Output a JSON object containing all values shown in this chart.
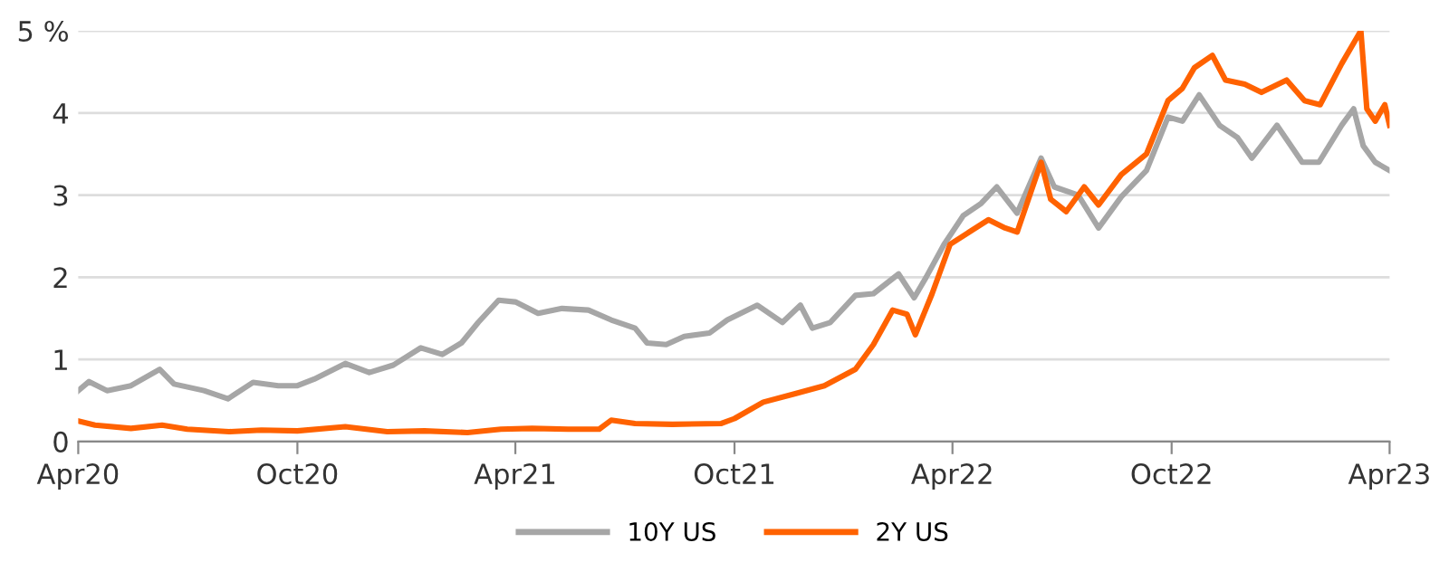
{
  "chart_data": {
    "type": "line",
    "xlim": [
      "2020-04-01",
      "2023-04-01"
    ],
    "xticks": [
      {
        "value": "2020-04-01",
        "label": "Apr20"
      },
      {
        "value": "2020-10-01",
        "label": "Oct20"
      },
      {
        "value": "2021-04-01",
        "label": "Apr21"
      },
      {
        "value": "2021-10-01",
        "label": "Oct21"
      },
      {
        "value": "2022-04-01",
        "label": "Apr22"
      },
      {
        "value": "2022-10-01",
        "label": "Oct22"
      },
      {
        "value": "2023-04-01",
        "label": "Apr23"
      }
    ],
    "ylim": [
      0,
      5
    ],
    "yticks": [
      0,
      1,
      2,
      3,
      4,
      {
        "value": 5,
        "label": "5 %"
      }
    ],
    "grid": "y",
    "legend": "bottom",
    "marker": "none",
    "line_style": "solid",
    "series": [
      {
        "name": "10Y US",
        "color": "#a6a6a6",
        "x": [
          "2020-04-01",
          "2020-04-10",
          "2020-04-25",
          "2020-05-15",
          "2020-06-08",
          "2020-06-20",
          "2020-07-15",
          "2020-08-04",
          "2020-08-25",
          "2020-09-15",
          "2020-10-01",
          "2020-10-15",
          "2020-11-10",
          "2020-11-30",
          "2020-12-20",
          "2021-01-12",
          "2021-01-30",
          "2021-02-15",
          "2021-03-01",
          "2021-03-18",
          "2021-04-01",
          "2021-04-20",
          "2021-05-10",
          "2021-06-01",
          "2021-06-20",
          "2021-07-10",
          "2021-07-20",
          "2021-08-05",
          "2021-08-20",
          "2021-09-10",
          "2021-09-25",
          "2021-10-20",
          "2021-11-10",
          "2021-11-25",
          "2021-12-05",
          "2021-12-20",
          "2022-01-10",
          "2022-01-25",
          "2022-02-15",
          "2022-02-28",
          "2022-03-10",
          "2022-03-25",
          "2022-04-10",
          "2022-04-25",
          "2022-05-08",
          "2022-05-25",
          "2022-06-14",
          "2022-06-25",
          "2022-07-15",
          "2022-08-01",
          "2022-08-20",
          "2022-09-10",
          "2022-09-28",
          "2022-10-10",
          "2022-10-24",
          "2022-11-10",
          "2022-11-25",
          "2022-12-07",
          "2022-12-28",
          "2023-01-18",
          "2023-02-01",
          "2023-02-20",
          "2023-03-02",
          "2023-03-10",
          "2023-03-20",
          "2023-04-01"
        ],
        "values": [
          0.62,
          0.73,
          0.62,
          0.68,
          0.88,
          0.7,
          0.62,
          0.52,
          0.72,
          0.68,
          0.68,
          0.76,
          0.95,
          0.84,
          0.93,
          1.14,
          1.06,
          1.2,
          1.45,
          1.72,
          1.7,
          1.56,
          1.62,
          1.6,
          1.48,
          1.38,
          1.2,
          1.18,
          1.28,
          1.32,
          1.48,
          1.66,
          1.45,
          1.66,
          1.38,
          1.45,
          1.78,
          1.8,
          2.04,
          1.75,
          2.0,
          2.4,
          2.75,
          2.9,
          3.1,
          2.78,
          3.45,
          3.1,
          3.0,
          2.6,
          2.98,
          3.3,
          3.95,
          3.9,
          4.22,
          3.85,
          3.7,
          3.45,
          3.85,
          3.4,
          3.4,
          3.85,
          4.05,
          3.6,
          3.4,
          3.3
        ]
      },
      {
        "name": "2Y US",
        "color": "#ff6200",
        "x": [
          "2020-04-01",
          "2020-04-15",
          "2020-05-15",
          "2020-06-10",
          "2020-07-01",
          "2020-08-05",
          "2020-09-01",
          "2020-10-01",
          "2020-11-10",
          "2020-12-15",
          "2021-01-15",
          "2021-02-20",
          "2021-03-20",
          "2021-04-15",
          "2021-05-15",
          "2021-06-10",
          "2021-06-20",
          "2021-07-10",
          "2021-08-10",
          "2021-09-20",
          "2021-10-01",
          "2021-10-25",
          "2021-11-20",
          "2021-12-15",
          "2022-01-10",
          "2022-01-25",
          "2022-02-10",
          "2022-02-22",
          "2022-03-01",
          "2022-03-15",
          "2022-03-30",
          "2022-04-15",
          "2022-05-01",
          "2022-05-15",
          "2022-05-25",
          "2022-06-14",
          "2022-06-22",
          "2022-07-05",
          "2022-07-20",
          "2022-08-01",
          "2022-08-20",
          "2022-09-10",
          "2022-09-28",
          "2022-10-10",
          "2022-10-20",
          "2022-11-04",
          "2022-11-15",
          "2022-12-01",
          "2022-12-15",
          "2023-01-05",
          "2023-01-20",
          "2023-02-02",
          "2023-02-20",
          "2023-03-08",
          "2023-03-13",
          "2023-03-20",
          "2023-03-28",
          "2023-04-01"
        ],
        "values": [
          0.25,
          0.2,
          0.16,
          0.2,
          0.15,
          0.12,
          0.14,
          0.13,
          0.18,
          0.12,
          0.13,
          0.11,
          0.15,
          0.16,
          0.15,
          0.15,
          0.26,
          0.22,
          0.21,
          0.22,
          0.28,
          0.48,
          0.58,
          0.68,
          0.88,
          1.18,
          1.6,
          1.55,
          1.3,
          1.8,
          2.4,
          2.55,
          2.7,
          2.6,
          2.55,
          3.4,
          2.95,
          2.8,
          3.1,
          2.88,
          3.25,
          3.5,
          4.15,
          4.3,
          4.55,
          4.7,
          4.4,
          4.35,
          4.25,
          4.4,
          4.15,
          4.1,
          4.6,
          5.0,
          4.05,
          3.9,
          4.1,
          3.85
        ]
      }
    ]
  }
}
